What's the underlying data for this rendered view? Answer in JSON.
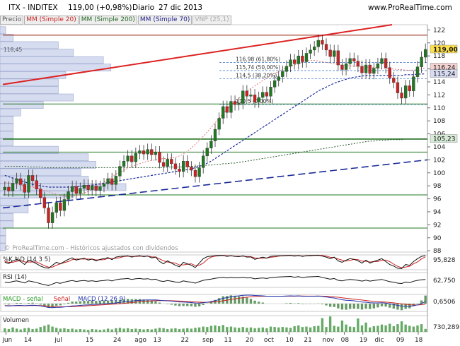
{
  "header": {
    "instrument": "ITX - INDITEX",
    "price": "119,00 (+0,98%)",
    "period": "Diario",
    "date": "27 dic 2013",
    "site": "www.ProRealTime.com"
  },
  "legend": [
    {
      "label": "Precio",
      "color": "#555555"
    },
    {
      "label": "MM (Simple 20)",
      "color": "#cc2222"
    },
    {
      "label": "MM (Simple 200)",
      "color": "#226622"
    },
    {
      "label": "MM (Simple 70)",
      "color": "#222288"
    },
    {
      "label": "VNP (25,1)",
      "color": "#aaaaaa"
    }
  ],
  "watermark": "© ProRealTime.com - Históricos ajustados con dividendos",
  "colors": {
    "up": "#227722",
    "down": "#cc2222",
    "sma20": "#dd7777",
    "sma70": "#1a2a99",
    "sma200": "#2a5a2a",
    "trend": "#dd2222",
    "hline": "#227722",
    "volume": "#66aa66"
  },
  "chart_data": [
    {
      "type": "candlestick",
      "name": "price",
      "x_ticks": [
        "jun",
        "14",
        "jul",
        "15",
        "24",
        "ago",
        "13",
        "22",
        "sep",
        "11",
        "20",
        "oct",
        "10",
        "21",
        "nov",
        "08",
        "19",
        "dic",
        "09",
        "18"
      ],
      "y_ticks": [
        88,
        90,
        92,
        94,
        96,
        98,
        100,
        102,
        104,
        106,
        108,
        110,
        112,
        114,
        116,
        118,
        120,
        122
      ],
      "ylim": [
        87.8,
        122.8
      ],
      "horizontal_lines": [
        96.6,
        105.2,
        110.6,
        121.2,
        103.2,
        91.5
      ],
      "price_labels": [
        {
          "text": "119,00",
          "value": 119.0
        },
        {
          "text": "116,24",
          "value": 116.24
        },
        {
          "text": "115,24",
          "value": 115.24
        },
        {
          "text": "105,23",
          "value": 105.23
        }
      ],
      "fibonacci": [
        {
          "label": "116,98 (61,80%)",
          "value": 116.98
        },
        {
          "label": "115,74 (50,00%)",
          "value": 115.74
        },
        {
          "label": "114,5 (38,20%)",
          "value": 114.5
        },
        {
          "label": "110,5 (0,00%)",
          "value": 110.5
        }
      ],
      "annotation": "118,45",
      "close": [
        97.8,
        97.2,
        98.4,
        99.1,
        98.2,
        97.0,
        99.6,
        98.8,
        97.5,
        96.2,
        94.6,
        92.3,
        93.9,
        95.4,
        94.2,
        95.9,
        97.1,
        97.9,
        96.8,
        97.6,
        98.1,
        97.4,
        98.0,
        97.3,
        97.9,
        98.3,
        99.1,
        98.2,
        99.5,
        101.0,
        101.8,
        102.6,
        101.7,
        103.0,
        103.4,
        102.9,
        103.6,
        102.8,
        103.2,
        101.6,
        101.0,
        102.1,
        101.4,
        100.6,
        100.2,
        101.8,
        100.9,
        100.4,
        99.4,
        100.8,
        102.6,
        103.8,
        104.9,
        106.7,
        108.4,
        110.2,
        109.3,
        111.0,
        110.5,
        110.7,
        112.6,
        111.8,
        112.0,
        110.9,
        111.6,
        112.4,
        111.8,
        113.2,
        114.2,
        114.8,
        115.6,
        116.4,
        117.4,
        116.8,
        118.0,
        117.1,
        118.4,
        118.9,
        119.4,
        120.4,
        119.8,
        118.9,
        117.9,
        118.8,
        116.6,
        115.9,
        116.8,
        117.6,
        117.2,
        116.4,
        115.4,
        116.6,
        115.3,
        116.1,
        116.8,
        117.6,
        116.2,
        114.6,
        113.9,
        112.3,
        111.5,
        113.4,
        112.6,
        114.8,
        116.3,
        117.8,
        119.0
      ],
      "sma20": [
        98.5,
        98.4,
        98.3,
        98.2,
        98.1,
        98.0,
        97.9,
        97.8,
        97.7,
        97.5,
        97.3,
        97.1,
        96.9,
        96.7,
        96.5,
        96.4,
        96.3,
        96.4,
        96.5,
        96.7,
        96.9,
        97.1,
        97.4,
        97.8,
        98.2,
        98.6,
        99.0,
        99.4,
        99.8,
        100.1,
        100.4,
        100.7,
        101.0,
        101.2,
        101.4,
        101.6,
        101.8,
        101.9,
        102.0,
        102.1,
        102.2,
        102.2,
        102.3,
        102.4,
        102.6,
        102.9,
        103.3,
        103.8,
        104.4,
        105.0,
        105.6,
        106.3,
        107.0,
        107.7,
        108.4,
        109.1,
        109.8,
        110.4,
        111.0,
        111.5,
        112.0,
        112.5,
        113.0,
        113.4,
        113.8,
        114.2,
        114.6,
        115.0,
        115.3,
        115.6,
        115.9,
        116.2,
        116.4,
        116.6,
        116.8,
        117.0,
        117.2,
        117.3,
        117.3,
        117.2,
        117.1,
        117.0,
        116.9,
        116.8,
        116.7,
        116.6,
        116.5,
        116.5,
        116.4,
        116.4,
        116.3,
        116.3,
        116.2,
        116.2,
        116.2,
        116.1,
        116.1,
        116.0,
        116.0,
        115.9,
        115.9,
        115.8,
        115.8,
        115.8,
        115.9,
        116.0,
        116.2
      ],
      "sma70": [
        99.6,
        99.4,
        99.2,
        99.0,
        98.8,
        98.6,
        98.4,
        98.2,
        98.1,
        98.0,
        97.9,
        97.8,
        97.8,
        97.8,
        97.8,
        97.8,
        97.8,
        97.8,
        97.9,
        97.9,
        98.0,
        98.0,
        98.1,
        98.2,
        98.3,
        98.4,
        98.5,
        98.6,
        98.7,
        98.8,
        98.9,
        99.0,
        99.1,
        99.2,
        99.3,
        99.4,
        99.5,
        99.6,
        99.7,
        99.8,
        99.9,
        100.0,
        100.1,
        100.2,
        100.3,
        100.4,
        100.5,
        100.6,
        100.8,
        101.0,
        101.2,
        101.5,
        101.8,
        102.2,
        102.6,
        103.0,
        103.4,
        103.8,
        104.2,
        104.6,
        105.0,
        105.4,
        105.8,
        106.2,
        106.6,
        107.0,
        107.4,
        107.8,
        108.2,
        108.6,
        109.0,
        109.4,
        109.8,
        110.2,
        110.6,
        111.0,
        111.4,
        111.8,
        112.2,
        112.6,
        112.9,
        113.2,
        113.5,
        113.8,
        114.0,
        114.2,
        114.4,
        114.6,
        114.7,
        114.8,
        114.9,
        115.0,
        115.0,
        115.0,
        115.0,
        115.0,
        115.0,
        115.0,
        115.0,
        115.0,
        115.0,
        115.1,
        115.1,
        115.1,
        115.2,
        115.2,
        115.24
      ],
      "sma200": [
        101.0,
        101.0,
        101.0,
        101.0,
        101.0,
        101.0,
        100.9,
        100.9,
        100.9,
        100.9,
        100.8,
        100.8,
        100.8,
        100.8,
        100.8,
        100.8,
        100.8,
        100.8,
        100.8,
        100.8,
        100.8,
        100.8,
        100.8,
        100.8,
        100.8,
        100.8,
        100.8,
        100.8,
        100.8,
        100.8,
        100.8,
        100.8,
        100.8,
        100.8,
        100.8,
        100.8,
        100.8,
        100.8,
        100.8,
        100.8,
        100.8,
        100.9,
        100.9,
        100.9,
        100.9,
        100.9,
        101.0,
        101.0,
        101.0,
        101.1,
        101.1,
        101.2,
        101.2,
        101.3,
        101.3,
        101.4,
        101.4,
        101.5,
        101.5,
        101.6,
        101.7,
        101.8,
        101.9,
        102.0,
        102.1,
        102.2,
        102.3,
        102.4,
        102.5,
        102.6,
        102.7,
        102.8,
        102.9,
        103.0,
        103.1,
        103.2,
        103.3,
        103.4,
        103.5,
        103.6,
        103.7,
        103.8,
        103.9,
        104.0,
        104.1,
        104.2,
        104.3,
        104.4,
        104.5,
        104.6,
        104.7,
        104.8,
        104.9,
        104.9,
        105.0,
        105.0,
        105.0,
        105.1,
        105.1,
        105.1,
        105.1,
        105.2,
        105.2,
        105.2,
        105.2,
        105.2,
        105.23
      ]
    },
    {
      "type": "line",
      "name": "stochastic",
      "panel_label": "%K %D (14 3 5)",
      "value_label": "95,828",
      "series": [
        {
          "name": "%K",
          "values": [
            50,
            42,
            60,
            70,
            55,
            35,
            65,
            55,
            40,
            25,
            15,
            10,
            30,
            50,
            40,
            55,
            70,
            80,
            65,
            72,
            78,
            65,
            72,
            60,
            70,
            75,
            82,
            68,
            85,
            90,
            92,
            94,
            85,
            92,
            95,
            88,
            93,
            80,
            85,
            55,
            40,
            60,
            45,
            30,
            20,
            50,
            40,
            30,
            15,
            45,
            75,
            88,
            92,
            95,
            96,
            97,
            90,
            95,
            90,
            88,
            94,
            85,
            86,
            70,
            78,
            85,
            78,
            90,
            93,
            94,
            95,
            96,
            97,
            92,
            96,
            90,
            95,
            96,
            97,
            98,
            92,
            85,
            75,
            85,
            60,
            50,
            65,
            75,
            70,
            60,
            45,
            65,
            45,
            55,
            65,
            75,
            55,
            35,
            25,
            10,
            8,
            35,
            30,
            55,
            75,
            90,
            95.8
          ]
        },
        {
          "name": "%D",
          "values": [
            55,
            50,
            50,
            57,
            62,
            53,
            52,
            52,
            53,
            40,
            27,
            17,
            18,
            30,
            40,
            48,
            55,
            68,
            72,
            72,
            72,
            72,
            72,
            66,
            67,
            68,
            76,
            75,
            78,
            81,
            89,
            92,
            90,
            90,
            91,
            92,
            92,
            87,
            86,
            73,
            60,
            52,
            48,
            45,
            32,
            33,
            37,
            40,
            28,
            30,
            45,
            69,
            85,
            92,
            94,
            96,
            94,
            94,
            92,
            91,
            91,
            89,
            88,
            80,
            78,
            78,
            80,
            84,
            87,
            92,
            94,
            95,
            96,
            95,
            95,
            93,
            94,
            94,
            96,
            97,
            96,
            92,
            84,
            82,
            73,
            65,
            58,
            63,
            70,
            68,
            58,
            57,
            52,
            55,
            55,
            65,
            65,
            55,
            38,
            23,
            14,
            18,
            24,
            40,
            53,
            73,
            87
          ]
        }
      ]
    },
    {
      "type": "line",
      "name": "rsi",
      "panel_label": "RSI (14)",
      "value_label": "62,750",
      "values": [
        48,
        45,
        52,
        55,
        50,
        44,
        55,
        51,
        46,
        40,
        35,
        30,
        38,
        46,
        42,
        48,
        53,
        57,
        52,
        55,
        57,
        53,
        56,
        52,
        55,
        57,
        60,
        55,
        61,
        65,
        66,
        68,
        63,
        67,
        68,
        65,
        67,
        62,
        64,
        55,
        52,
        57,
        53,
        49,
        47,
        55,
        51,
        48,
        43,
        51,
        58,
        62,
        65,
        69,
        72,
        75,
        71,
        74,
        72,
        72,
        75,
        71,
        72,
        66,
        69,
        71,
        68,
        73,
        75,
        76,
        77,
        78,
        79,
        75,
        78,
        73,
        76,
        77,
        78,
        79,
        74,
        69,
        64,
        68,
        58,
        55,
        60,
        63,
        61,
        58,
        54,
        59,
        54,
        57,
        60,
        63,
        57,
        51,
        48,
        43,
        41,
        49,
        46,
        53,
        58,
        61,
        62.75
      ]
    },
    {
      "type": "bar",
      "name": "macd",
      "panel_label_series": [
        "MACD - señal",
        "Señal",
        "MACD (12 26 9)"
      ],
      "value_label": "0,6506",
      "series": [
        {
          "name": "MACD (12 26 9)",
          "values": [
            -0.6,
            -0.65,
            -0.6,
            -0.5,
            -0.5,
            -0.6,
            -0.5,
            -0.45,
            -0.5,
            -0.65,
            -0.85,
            -1.1,
            -1.15,
            -1.05,
            -1.05,
            -0.95,
            -0.8,
            -0.65,
            -0.6,
            -0.5,
            -0.4,
            -0.35,
            -0.25,
            -0.2,
            -0.12,
            -0.05,
            0.05,
            0.1,
            0.2,
            0.35,
            0.5,
            0.65,
            0.72,
            0.85,
            0.95,
            1.0,
            1.05,
            1.05,
            1.05,
            0.95,
            0.85,
            0.8,
            0.72,
            0.6,
            0.48,
            0.45,
            0.38,
            0.3,
            0.18,
            0.15,
            0.25,
            0.4,
            0.6,
            0.85,
            1.15,
            1.5,
            1.7,
            1.95,
            2.1,
            2.2,
            2.35,
            2.4,
            2.4,
            2.3,
            2.25,
            2.2,
            2.1,
            2.1,
            2.1,
            2.1,
            2.1,
            2.15,
            2.2,
            2.15,
            2.2,
            2.1,
            2.1,
            2.1,
            2.1,
            2.15,
            2.05,
            1.9,
            1.7,
            1.6,
            1.35,
            1.1,
            0.95,
            0.9,
            0.8,
            0.65,
            0.45,
            0.4,
            0.25,
            0.2,
            0.2,
            0.25,
            0.15,
            -0.05,
            -0.25,
            -0.5,
            -0.7,
            -0.7,
            -0.75,
            -0.6,
            -0.35,
            0.0,
            0.65
          ]
        },
        {
          "name": "Señal",
          "values": [
            -0.55,
            -0.57,
            -0.58,
            -0.57,
            -0.56,
            -0.57,
            -0.56,
            -0.54,
            -0.53,
            -0.56,
            -0.62,
            -0.72,
            -0.8,
            -0.85,
            -0.89,
            -0.9,
            -0.88,
            -0.84,
            -0.79,
            -0.73,
            -0.67,
            -0.6,
            -0.53,
            -0.46,
            -0.39,
            -0.32,
            -0.24,
            -0.17,
            -0.1,
            -0.01,
            0.09,
            0.2,
            0.3,
            0.41,
            0.52,
            0.61,
            0.7,
            0.77,
            0.83,
            0.85,
            0.85,
            0.84,
            0.82,
            0.78,
            0.72,
            0.67,
            0.61,
            0.55,
            0.48,
            0.41,
            0.38,
            0.38,
            0.42,
            0.5,
            0.63,
            0.8,
            0.98,
            1.17,
            1.35,
            1.52,
            1.69,
            1.83,
            1.95,
            2.02,
            2.07,
            2.1,
            2.1,
            2.1,
            2.1,
            2.1,
            2.1,
            2.11,
            2.13,
            2.13,
            2.15,
            2.14,
            2.13,
            2.13,
            2.12,
            2.13,
            2.11,
            2.07,
            2.0,
            1.92,
            1.8,
            1.66,
            1.52,
            1.4,
            1.28,
            1.15,
            1.01,
            0.89,
            0.76,
            0.65,
            0.56,
            0.5,
            0.43,
            0.33,
            0.22,
            0.07,
            -0.08,
            -0.2,
            -0.31,
            -0.37,
            -0.37,
            -0.3,
            -0.11
          ]
        }
      ]
    },
    {
      "type": "bar",
      "name": "volume",
      "panel_label": "Volumen",
      "value_label": "730,289",
      "values": [
        0.9,
        0.7,
        1.1,
        0.8,
        0.6,
        0.9,
        1.0,
        0.7,
        0.8,
        1.2,
        1.5,
        1.8,
        1.3,
        1.0,
        0.8,
        0.9,
        0.7,
        0.8,
        0.6,
        0.7,
        0.6,
        0.5,
        0.7,
        0.6,
        0.5,
        0.6,
        0.8,
        0.6,
        0.9,
        1.0,
        0.8,
        0.9,
        0.7,
        0.8,
        0.7,
        0.6,
        0.7,
        0.6,
        0.8,
        1.0,
        0.9,
        0.7,
        0.8,
        0.9,
        0.7,
        0.8,
        0.9,
        0.8,
        1.0,
        1.1,
        1.3,
        1.2,
        1.5,
        1.6,
        1.4,
        1.7,
        1.2,
        1.3,
        1.1,
        1.0,
        1.2,
        1.0,
        1.1,
        0.9,
        1.0,
        1.1,
        0.9,
        1.3,
        1.2,
        1.1,
        1.2,
        1.1,
        1.0,
        1.4,
        1.6,
        1.2,
        1.3,
        1.1,
        1.4,
        1.5,
        3.4,
        1.2,
        3.8,
        1.5,
        1.3,
        2.8,
        1.8,
        1.3,
        1.2,
        3.3,
        1.6,
        2.3,
        1.1,
        1.4,
        1.5,
        1.8,
        1.6,
        2.0,
        1.4,
        1.9,
        2.6,
        1.8,
        1.5,
        1.3,
        1.6,
        1.9,
        0.73
      ]
    }
  ]
}
